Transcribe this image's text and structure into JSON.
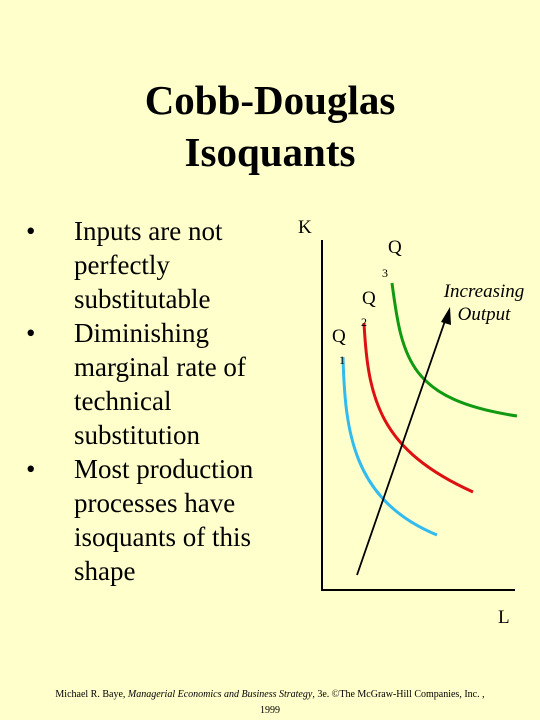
{
  "title": {
    "line1": "Cobb-Douglas",
    "line2": "Isoquants"
  },
  "bullets": [
    {
      "lines": [
        "Inputs are not",
        "perfectly",
        "substitutable"
      ]
    },
    {
      "lines": [
        "Diminishing",
        "marginal rate of",
        "technical",
        "substitution"
      ]
    },
    {
      "lines": [
        "Most production",
        "processes have",
        "isoquants of this",
        "shape"
      ]
    }
  ],
  "diagram": {
    "y_axis_label": "K",
    "x_axis_label": "L",
    "isoquants": [
      {
        "letter": "Q",
        "subscript": "1",
        "color": "#33bbee"
      },
      {
        "letter": "Q",
        "subscript": "2",
        "color": "#dd1111"
      },
      {
        "letter": "Q",
        "subscript": "3",
        "color": "#119911"
      }
    ],
    "annotation_line1": "Increasing",
    "annotation_line2": "Output",
    "arrow_color": "#000000"
  },
  "footer": {
    "author": "Michael R. Baye,",
    "book": "Managerial Economics and Business Strategy",
    "edition": ", 3e. ©The McGraw-Hill Companies, Inc. ,",
    "year": "1999"
  }
}
